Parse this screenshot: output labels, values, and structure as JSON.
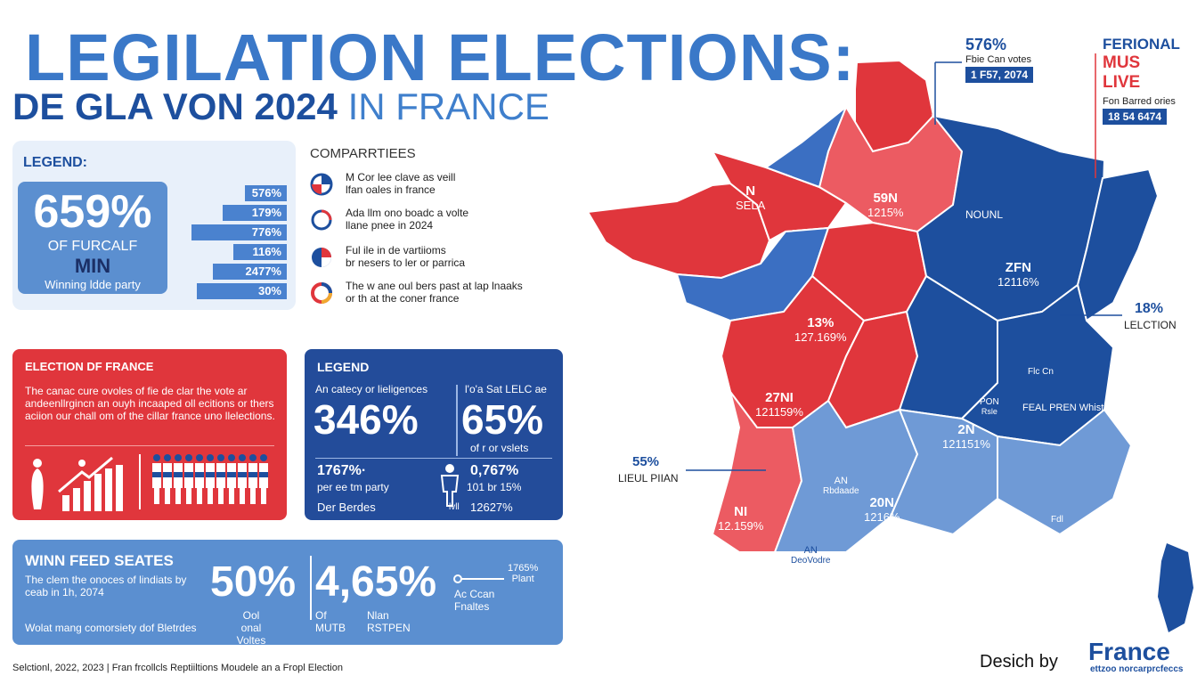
{
  "title": {
    "line1": "LEGILATION ELECTIONS:",
    "line2_bold": "DE GLA VON 2024",
    "line2_light": "IN FRANCE"
  },
  "legend_panel": {
    "heading": "LEGEND:",
    "big_pct": "659%",
    "line1": "OF FURCALF",
    "line2": "MIN",
    "line3": "Winning ldde party",
    "bars": [
      {
        "label": "576%",
        "fill": 0.36
      },
      {
        "label": "179%",
        "fill": 0.55
      },
      {
        "label": "776%",
        "fill": 0.82
      },
      {
        "label": "116%",
        "fill": 0.46
      },
      {
        "label": "2477%",
        "fill": 0.64
      },
      {
        "label": "30%",
        "fill": 0.78
      }
    ]
  },
  "comparties": {
    "heading": "COMPARRTIEES",
    "items": [
      {
        "icon": "pie-split-icon",
        "line1": "M Cor lee clave as veill",
        "line2": "lfan oales in france"
      },
      {
        "icon": "ring-icon",
        "line1": "Ada llm ono boadc a volte",
        "line2": "llane pnee in 2024"
      },
      {
        "icon": "pie-red-icon",
        "line1": "Ful ile in de vartiioms",
        "line2": "br nesers to ler or parrica"
      },
      {
        "icon": "donut-multi-icon",
        "line1": "The w ane oul bers past at lap lnaaks",
        "line2": "or th at the coner france"
      }
    ]
  },
  "red_panel": {
    "heading": "ELECTION DF FRANCE",
    "text": "The canac cure ovoles of fie de clar the vote ar andeenllrgincn an ouyh incaaped oll ecitions or thers aciion our chall om of the cillar france uno llelections."
  },
  "blue_panel": {
    "heading": "LEGEND",
    "cap1": "An catecy or lieligences",
    "cap2": "l'o'a Sat LELC ae",
    "pct1": "346%",
    "pct2": "65%",
    "pct2_sub": "of r or vslets",
    "stat1": "1767%·",
    "stat1_sub": "per ee tm party",
    "stat2": "0,767%",
    "stat2_sub": "101 br 15%",
    "foot1": "Der Berdes",
    "foot_mid": "lvll",
    "foot2": "12627%"
  },
  "win_panel": {
    "heading": "WINN FEED SEATES",
    "text": "The clem the onoces of lindiats by ceab in 1h, 2074",
    "footer": "Wolat mang comorsiety dof Bletrdes",
    "pct1": "50%",
    "pct1_sub1": "Ool onal",
    "pct1_sub2": "Voltes",
    "pct2": "4,65%",
    "pct2_sub1": "Of",
    "pct2_sub2": "MUTB",
    "pct2_sub3": "Nlan",
    "pct2_sub4": "RSTPEN",
    "right_label1": "Ac Ccan",
    "right_label2": "Fnaltes",
    "right_pct": "1765%",
    "right_pct_sub": "Plant"
  },
  "footer": "Selctionl, 2022, 2023   |   Fran frcollcls Reptiiltions Moudele an a Fropl Election",
  "map": {
    "regions": [
      {
        "line1": "N",
        "line2": "SELA"
      },
      {
        "line1": "59N",
        "line2": "1215%"
      },
      {
        "line1": "NOUNL",
        "line2": ""
      },
      {
        "line1": "ZFN",
        "line2": "12116%"
      },
      {
        "line1": "13%",
        "line2": "127.169%"
      },
      {
        "line1": "27NI",
        "line2": "121159%"
      },
      {
        "line1": "2N",
        "line2": "121151%"
      },
      {
        "line1": "NI",
        "line2": "12.159%"
      },
      {
        "line1": "20N",
        "line2": "1216%"
      },
      {
        "line1": "AN",
        "line2": "Rbdaade"
      },
      {
        "line1": "AN",
        "line2": "DeoVodre"
      },
      {
        "line1": "FEAL PREN Whiste",
        "line2": ""
      },
      {
        "line1": "Flc Cn",
        "line2": ""
      },
      {
        "line1": "PON",
        "line2": "Rsle"
      },
      {
        "line1": "Fdl",
        "line2": ""
      }
    ],
    "anno_right_pct": "18%",
    "anno_right_label": "LELCTION",
    "anno_left_pct": "55%",
    "anno_left_label": "LIEUL PIIAN"
  },
  "top_right": {
    "pct": "576%",
    "label": "Fbie Can votes",
    "badge": "1 F57, 2074",
    "col2_title": "FERIONAL",
    "col2_red1": "MUS",
    "col2_red2": "LIVE",
    "col2_label": "Fon Barred ories",
    "col2_badge": "18 54 6474"
  },
  "credit": {
    "designed_by": "Desich by",
    "brand": "France",
    "brand_sub": "ettzoo norcarprcfeccs"
  },
  "colors": {
    "red": "#e0363c",
    "light_red": "#ec5b62",
    "blue_dark": "#1d4f9e",
    "blue_mid": "#3b6fc2",
    "blue_light": "#6f9ad6"
  }
}
